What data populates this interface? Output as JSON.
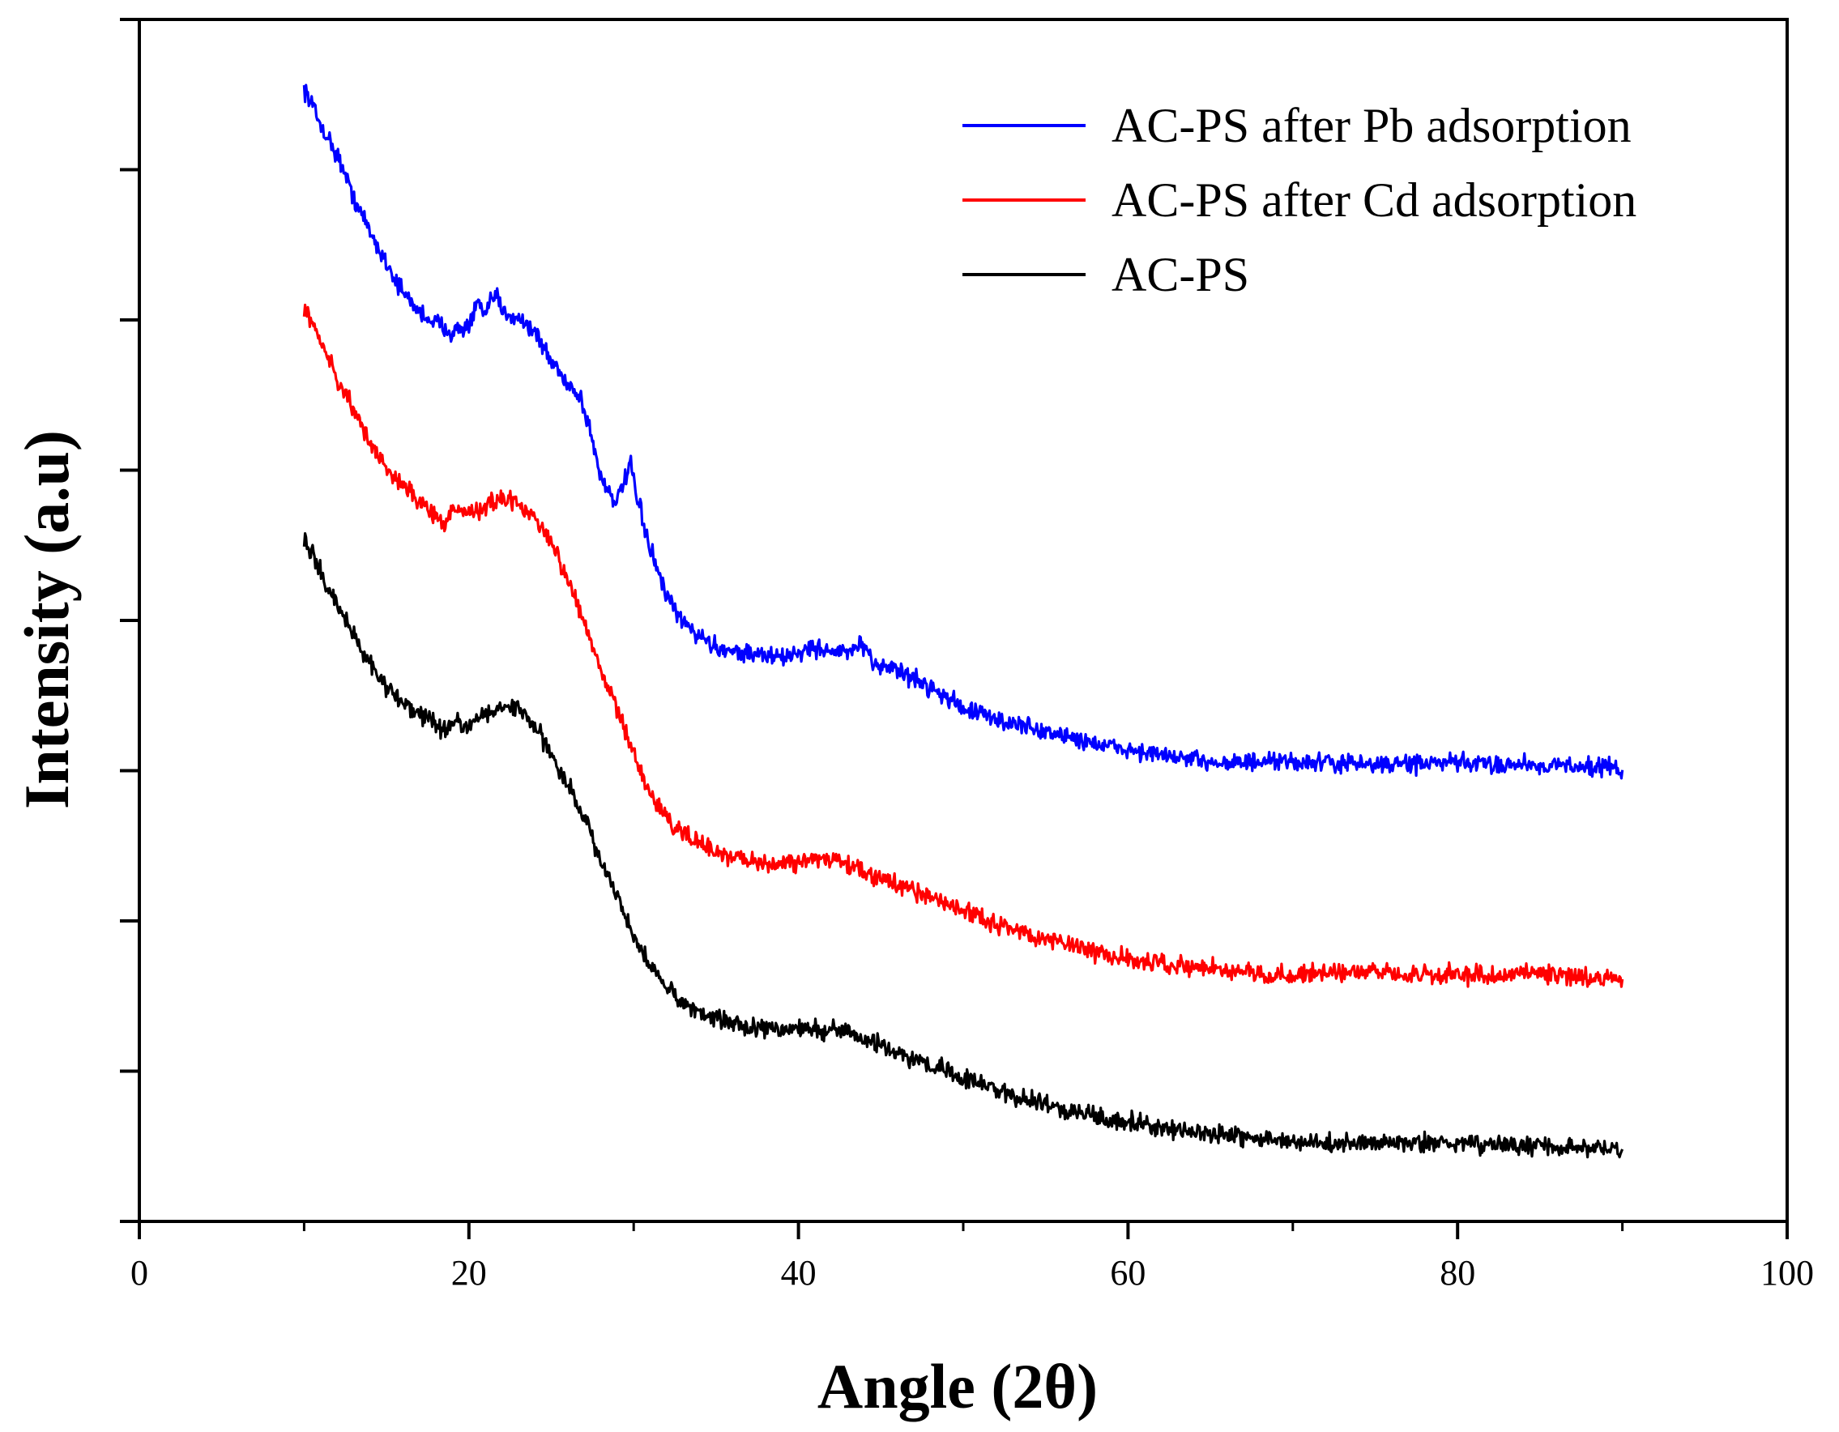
{
  "chart_data": {
    "type": "line",
    "title": "",
    "xlabel": "Angle (2θ)",
    "ylabel": "Intensity (a.u)",
    "xlim": [
      0,
      100
    ],
    "ylim": [
      0,
      8
    ],
    "x_ticks": [
      0,
      20,
      40,
      60,
      80,
      100
    ],
    "x_tick_labels": [
      "0",
      "20",
      "40",
      "60",
      "80",
      "100"
    ],
    "y_ticks": [
      0,
      1,
      2,
      3,
      4,
      5,
      6,
      7,
      8
    ],
    "y_tick_labels_shown": false,
    "grid": false,
    "legend_position": "top-right",
    "series": [
      {
        "name": "AC-PS after Pb adsorption",
        "color": "#0000ff",
        "x": [
          10,
          11,
          12,
          13,
          14,
          15,
          16,
          17,
          18,
          19,
          20,
          20.6,
          21,
          21.6,
          22,
          23,
          24,
          25,
          26,
          26.8,
          27.5,
          28,
          29,
          29.8,
          30.1,
          30.6,
          31,
          32,
          33,
          35,
          37,
          39,
          41,
          42,
          43,
          43.8,
          44.5,
          45.5,
          46.5,
          48,
          50,
          52,
          55,
          58,
          60,
          62,
          65,
          68,
          70,
          75,
          80,
          85,
          90
        ],
        "y": [
          7.55,
          7.3,
          7.1,
          6.82,
          6.58,
          6.38,
          6.18,
          6.05,
          5.98,
          5.92,
          5.96,
          6.12,
          6.02,
          6.18,
          6.06,
          6.02,
          5.92,
          5.72,
          5.58,
          5.48,
          5.2,
          4.95,
          4.78,
          5.05,
          4.85,
          4.65,
          4.48,
          4.15,
          3.98,
          3.82,
          3.78,
          3.75,
          3.82,
          3.8,
          3.78,
          3.85,
          3.7,
          3.7,
          3.64,
          3.56,
          3.42,
          3.34,
          3.26,
          3.18,
          3.14,
          3.1,
          3.06,
          3.05,
          3.06,
          3.04,
          3.05,
          3.04,
          3.02
        ]
      },
      {
        "name": "AC-PS after Cd adsorption",
        "color": "#ff0000",
        "x": [
          10,
          11,
          12,
          13,
          14,
          15,
          16,
          17,
          18,
          18.5,
          19,
          20,
          21,
          22,
          23,
          24,
          25,
          26,
          27,
          28,
          29,
          30,
          31,
          32,
          33,
          35,
          37,
          39,
          41,
          43,
          45,
          47,
          50,
          52,
          55,
          58,
          60,
          62,
          65,
          68,
          70,
          75,
          80,
          85,
          90
        ],
        "y": [
          6.1,
          5.85,
          5.62,
          5.4,
          5.18,
          5.02,
          4.9,
          4.78,
          4.72,
          4.62,
          4.74,
          4.72,
          4.76,
          4.8,
          4.78,
          4.68,
          4.52,
          4.28,
          3.98,
          3.68,
          3.4,
          3.1,
          2.85,
          2.68,
          2.58,
          2.45,
          2.4,
          2.38,
          2.42,
          2.38,
          2.28,
          2.2,
          2.07,
          1.98,
          1.88,
          1.8,
          1.75,
          1.72,
          1.68,
          1.65,
          1.64,
          1.66,
          1.64,
          1.65,
          1.62
        ]
      },
      {
        "name": "AC-PS",
        "color": "#000000",
        "x": [
          10,
          11,
          12,
          13,
          14,
          15,
          16,
          17,
          18,
          18.5,
          19,
          20,
          21,
          22,
          23,
          24,
          25,
          26,
          27,
          28,
          29,
          30,
          31,
          32,
          33,
          35,
          37,
          39,
          41,
          43,
          45,
          47,
          50,
          52,
          55,
          58,
          60,
          62,
          65,
          68,
          70,
          75,
          80,
          85,
          90
        ],
        "y": [
          4.55,
          4.32,
          4.1,
          3.9,
          3.72,
          3.55,
          3.45,
          3.38,
          3.32,
          3.26,
          3.32,
          3.3,
          3.36,
          3.42,
          3.42,
          3.3,
          3.12,
          2.9,
          2.68,
          2.42,
          2.15,
          1.9,
          1.7,
          1.56,
          1.45,
          1.35,
          1.3,
          1.28,
          1.28,
          1.26,
          1.18,
          1.08,
          0.96,
          0.88,
          0.78,
          0.7,
          0.66,
          0.62,
          0.58,
          0.55,
          0.52,
          0.52,
          0.52,
          0.5,
          0.48
        ]
      }
    ]
  }
}
